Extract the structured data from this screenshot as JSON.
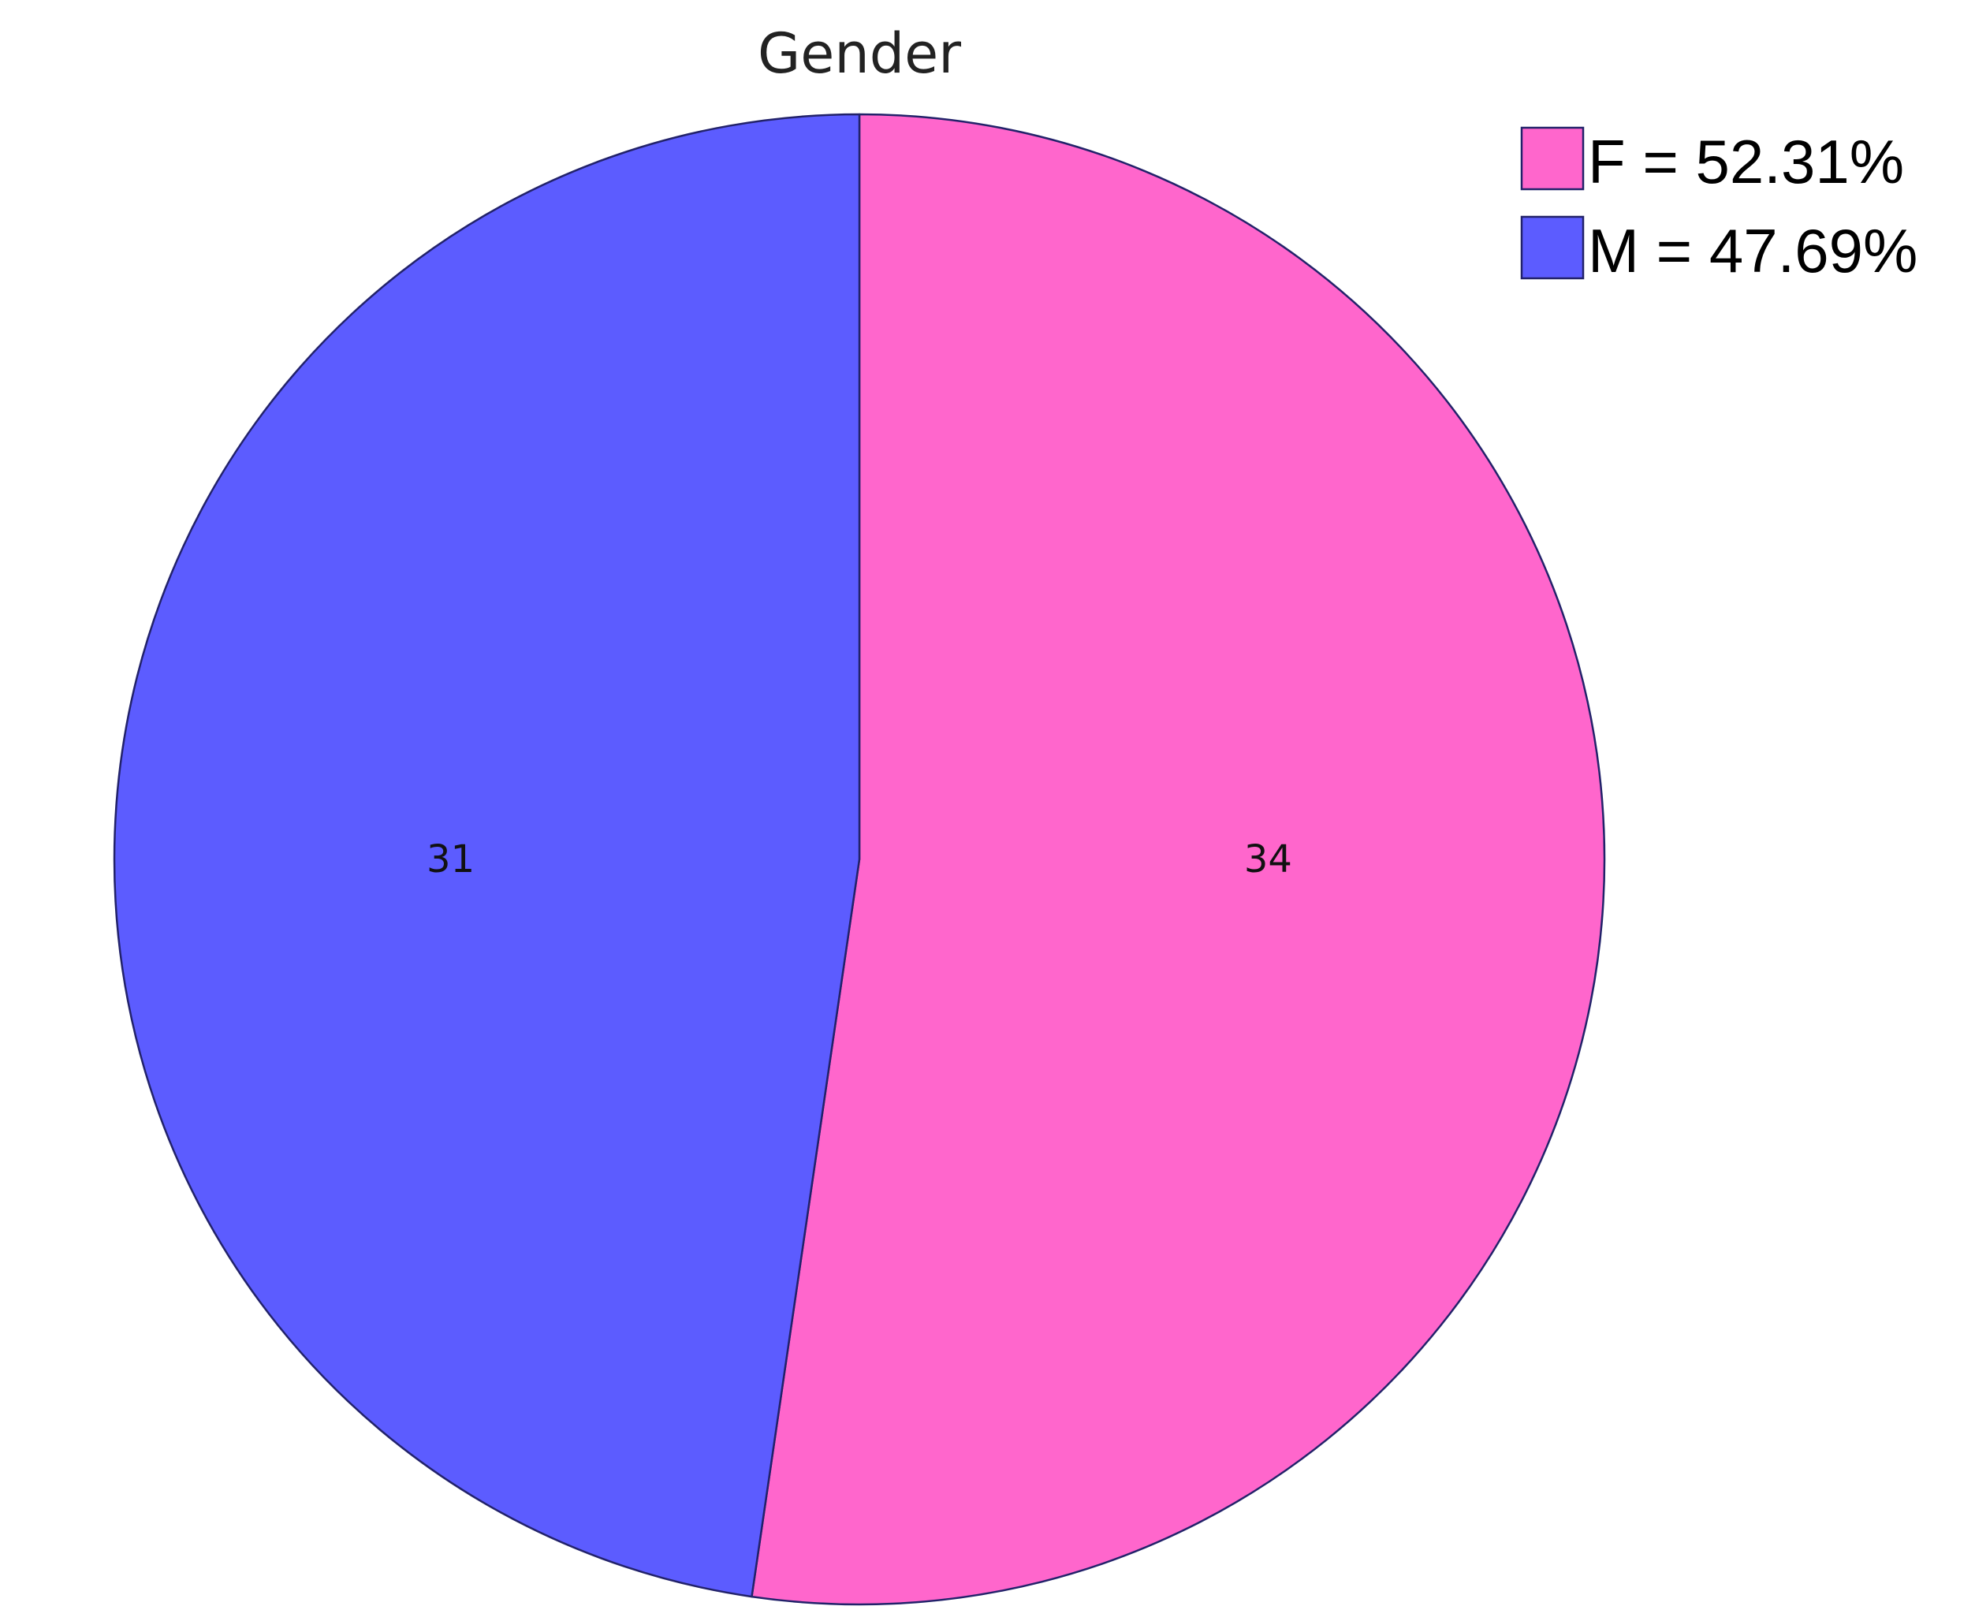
{
  "chart_data": {
    "type": "pie",
    "title": "Gender",
    "categories": [
      "F",
      "M"
    ],
    "values": [
      34,
      31
    ],
    "percentages": [
      "52.31%",
      "47.69%"
    ],
    "legend_labels": [
      "F = 52.31%",
      "M = 47.69%"
    ],
    "colors": [
      "#ff66cc",
      "#5c5cff"
    ],
    "start": "12 o'clock",
    "direction": "clockwise",
    "legend_position": "top-right"
  },
  "colors": {
    "outline": "#22226a",
    "background": "#ffffff"
  }
}
